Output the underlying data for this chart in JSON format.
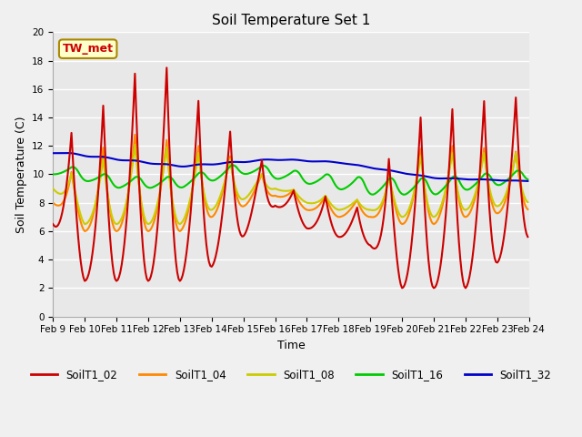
{
  "title": "Soil Temperature Set 1",
  "ylabel": "Soil Temperature (C)",
  "xlabel": "Time",
  "annotation": "TW_met",
  "ylim": [
    0,
    20
  ],
  "yticks": [
    0,
    2,
    4,
    6,
    8,
    10,
    12,
    14,
    16,
    18,
    20
  ],
  "xtick_labels": [
    "Feb 9",
    "Feb 10",
    "Feb 11",
    "Feb 12",
    "Feb 13",
    "Feb 14",
    "Feb 15",
    "Feb 16",
    "Feb 17",
    "Feb 18",
    "Feb 19",
    "Feb 20",
    "Feb 21",
    "Feb 22",
    "Feb 23",
    "Feb 24"
  ],
  "colors": {
    "SoilT1_02": "#cc0000",
    "SoilT1_04": "#ff8800",
    "SoilT1_08": "#cccc00",
    "SoilT1_16": "#00cc00",
    "SoilT1_32": "#0000cc"
  },
  "fig_facecolor": "#f0f0f0",
  "ax_facecolor": "#e8e8e8",
  "grid_color": "#ffffff",
  "ann_facecolor": "#ffffcc",
  "ann_edgecolor": "#aa8800",
  "ann_textcolor": "#cc0000"
}
